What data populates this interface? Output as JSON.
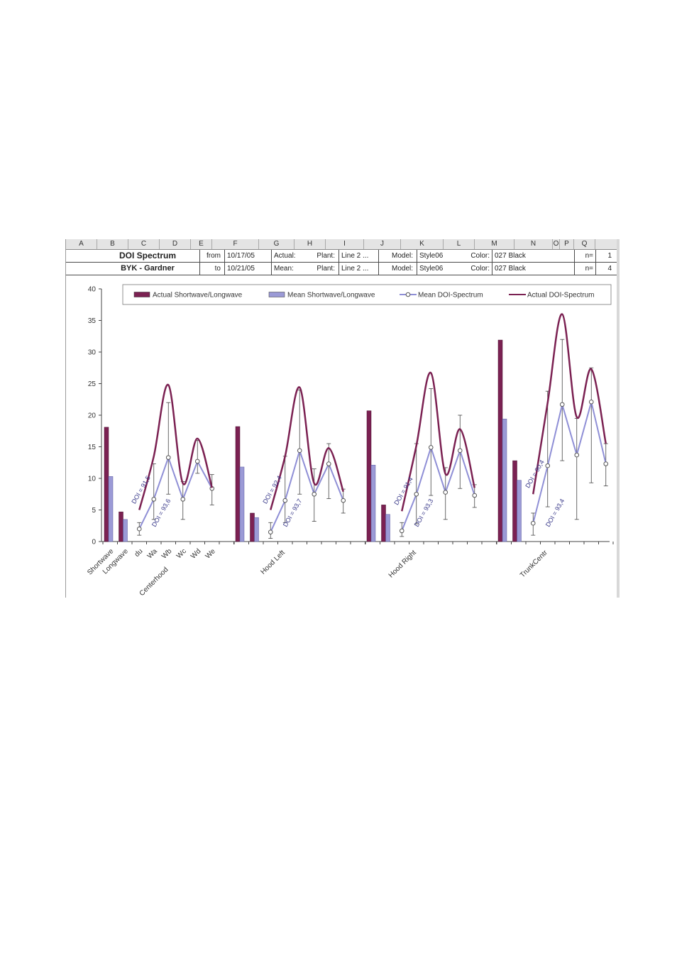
{
  "columns": [
    "A",
    "B",
    "C",
    "D",
    "E",
    "F",
    "G",
    "H",
    "I",
    "J",
    "K",
    "L",
    "M",
    "N",
    "O",
    "P",
    "Q"
  ],
  "header": {
    "title": "DOI Spectrum",
    "subtitle": "BYK - Gardner",
    "from_label": "from",
    "to_label": "to",
    "from_date": "10/17/05",
    "to_date": "10/21/05",
    "actual_label": "Actual:",
    "mean_label": "Mean:",
    "plant_label": "Plant:",
    "plant_actual": "Line 2 ...",
    "plant_mean": "Line 2 ...",
    "model_label": "Model:",
    "model_actual": "Style06",
    "model_mean": "Style06",
    "color_label": "Color:",
    "color_actual": "027 Black",
    "color_mean": "027 Black",
    "n_label": "n=",
    "n_actual": "1",
    "n_mean": "4"
  },
  "colors": {
    "actual_bar": "#7b2152",
    "mean_bar": "#9b9ad6",
    "actual_line": "#7b2152",
    "mean_line": "#8f8fd6"
  },
  "chart_data": {
    "type": "bar",
    "ylim": [
      0,
      40
    ],
    "yticks": [
      0,
      5,
      10,
      15,
      20,
      25,
      30,
      35,
      40
    ],
    "legend_position": "top",
    "grid": false,
    "x_labels": [
      "Shortwave",
      "Longwave",
      "du",
      "Wa",
      "Wb",
      "Wc",
      "Wd",
      "We"
    ],
    "groups": [
      "Centerhood",
      "Hood Left",
      "Hood Right",
      "TrunkCentr"
    ],
    "series": [
      {
        "name": "Actual Shortwave/Longwave",
        "kind": "bar",
        "values": [
          [
            18.1,
            4.7
          ],
          [
            18.2,
            4.5
          ],
          [
            20.7,
            5.8
          ],
          [
            31.9,
            12.8
          ]
        ]
      },
      {
        "name": "Mean Shortwave/Longwave",
        "kind": "bar",
        "values": [
          [
            10.3,
            3.5
          ],
          [
            11.8,
            3.8
          ],
          [
            12.1,
            4.3
          ],
          [
            19.4,
            9.7
          ]
        ]
      },
      {
        "name": "Mean DOI-Spectrum",
        "kind": "line",
        "values": [
          [
            2.0,
            6.7,
            13.3,
            6.7,
            12.7,
            8.4
          ],
          [
            1.5,
            6.5,
            14.4,
            7.5,
            12.3,
            6.5
          ],
          [
            1.7,
            7.5,
            14.9,
            7.8,
            14.4,
            7.3
          ],
          [
            2.9,
            12.0,
            21.7,
            13.7,
            22.1,
            12.3
          ]
        ],
        "error_high": [
          [
            3.0,
            12.3,
            22.0,
            9.5,
            16.0,
            10.6
          ],
          [
            3.0,
            13.5,
            24.0,
            11.5,
            15.5,
            8.3
          ],
          [
            3.0,
            15.5,
            24.2,
            11.7,
            20.0,
            9.0
          ],
          [
            4.5,
            23.8,
            32.0,
            19.5,
            27.5,
            15.5
          ]
        ],
        "error_low": [
          [
            1.0,
            3.5,
            7.5,
            3.5,
            10.8,
            5.8
          ],
          [
            0.5,
            3.0,
            7.5,
            3.2,
            6.8,
            4.5
          ],
          [
            0.8,
            2.8,
            7.3,
            3.5,
            8.4,
            5.4
          ],
          [
            1.0,
            5.5,
            12.8,
            3.5,
            9.3,
            8.8
          ]
        ]
      },
      {
        "name": "Actual DOI-Spectrum",
        "kind": "line",
        "values": [
          [
            5.0,
            13.5,
            24.8,
            9.2,
            16.3,
            8.5
          ],
          [
            5.0,
            13.5,
            24.4,
            9.2,
            14.8,
            7.9
          ],
          [
            4.8,
            15.2,
            26.7,
            10.7,
            17.8,
            8.5
          ],
          [
            7.5,
            22.0,
            36.0,
            19.7,
            27.3,
            15.5
          ]
        ]
      }
    ],
    "annotations": [
      {
        "group": 0,
        "actual": "DOI = 91,5",
        "mean": "DOI = 93,6"
      },
      {
        "group": 1,
        "actual": "DOI = 92,4",
        "mean": "DOI = 93,7"
      },
      {
        "group": 2,
        "actual": "DOI = 91,4",
        "mean": "DOI = 93,3"
      },
      {
        "group": 3,
        "actual": "DOI = 90,4",
        "mean": "DOI = 93,4"
      }
    ]
  }
}
